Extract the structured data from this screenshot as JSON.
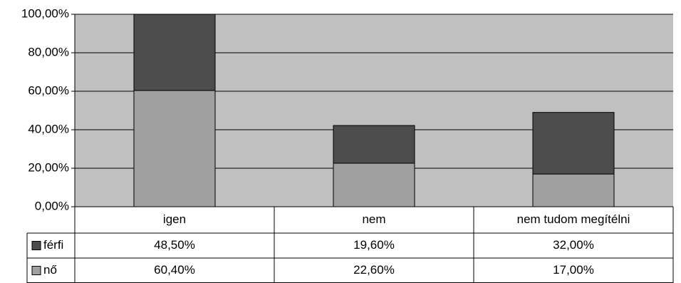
{
  "chart_data": {
    "type": "bar",
    "stacked": true,
    "categories": [
      "igen",
      "nem",
      "nem tudom megítélni"
    ],
    "series": [
      {
        "name": "nő",
        "values": [
          60.4,
          22.6,
          17.0
        ],
        "labels": [
          "60,40%",
          "22,60%",
          "17,00%"
        ],
        "color": "#a0a0a0"
      },
      {
        "name": "férfi",
        "values": [
          48.5,
          19.6,
          32.0
        ],
        "labels": [
          "48,50%",
          "19,60%",
          "32,00%"
        ],
        "color": "#4d4d4d"
      }
    ],
    "ylim": [
      0,
      100
    ],
    "yticks": [
      0,
      20,
      40,
      60,
      80,
      100
    ],
    "ytick_labels": [
      "0,00%",
      "20,00%",
      "40,00%",
      "60,00%",
      "80,00%",
      "100,00%"
    ],
    "plot_background": "#c0c0c0",
    "grid": true,
    "legend": "data-table"
  }
}
